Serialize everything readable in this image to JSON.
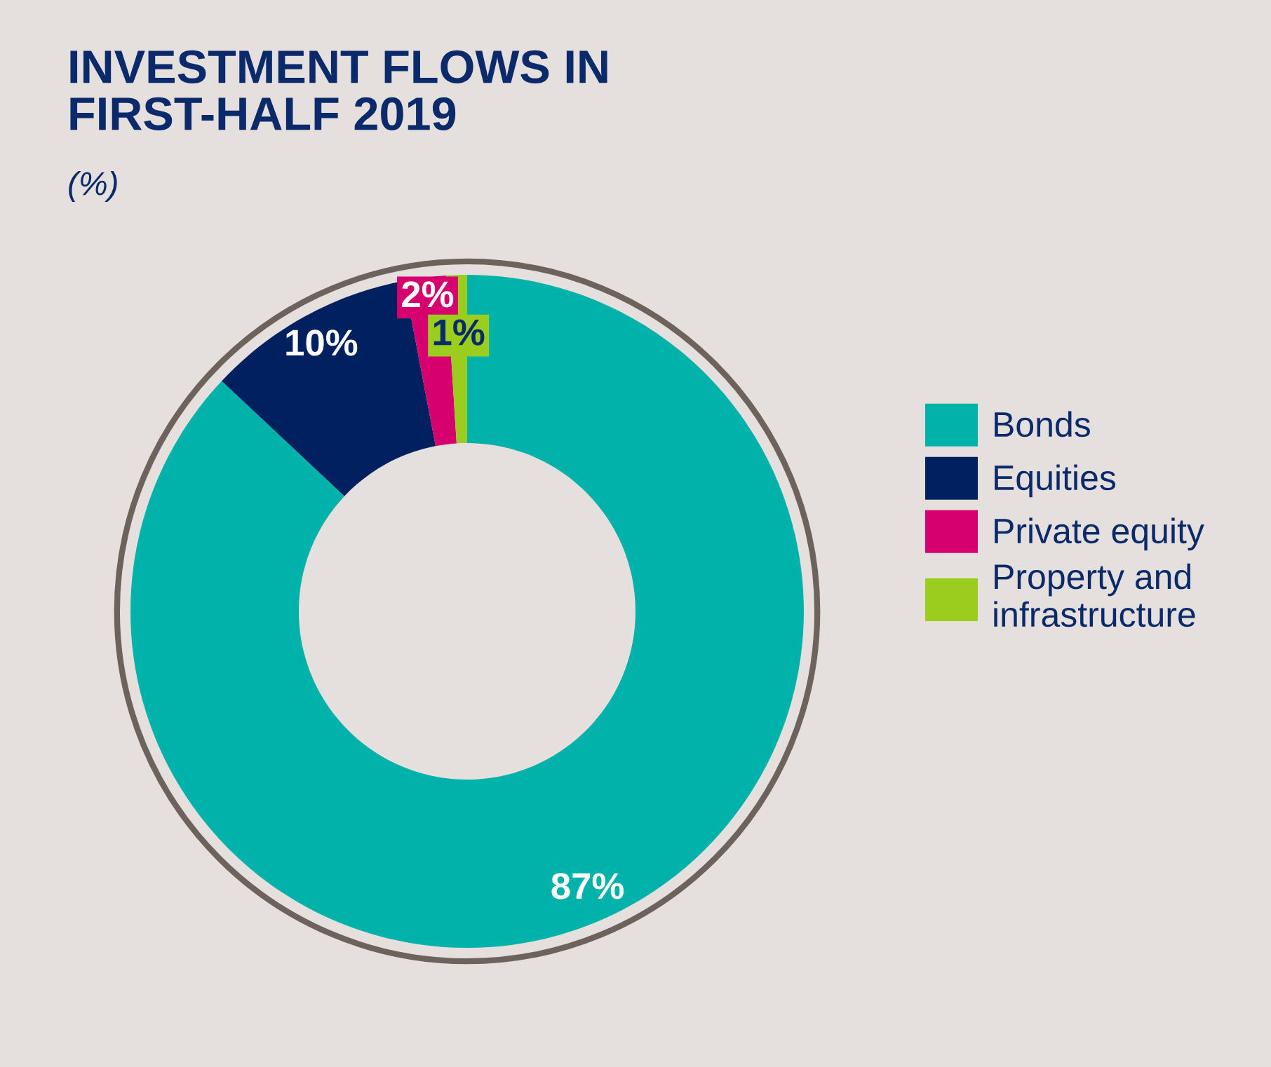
{
  "chart_data": {
    "type": "donut",
    "title": "INVESTMENT FLOWS IN\nFIRST-HALF 2019",
    "subtitle": "(%)",
    "categories": [
      "Bonds",
      "Equities",
      "Private equity",
      "Property and\ninfrastructure"
    ],
    "values": [
      87,
      10,
      2,
      1
    ],
    "colors": [
      "#00b2a9",
      "#002060",
      "#d6006e",
      "#9acd1e"
    ],
    "value_labels": [
      "87%",
      "10%",
      "2%",
      "1%"
    ],
    "legend": "right"
  }
}
